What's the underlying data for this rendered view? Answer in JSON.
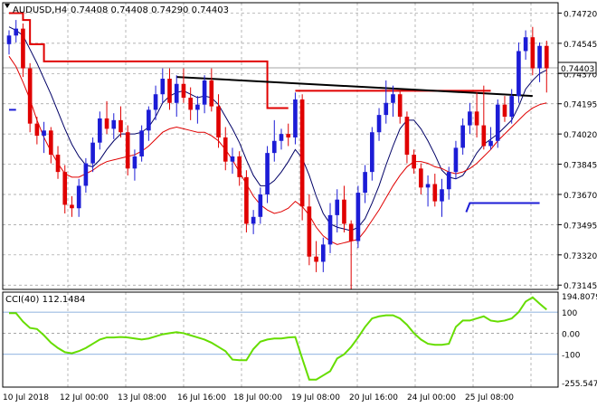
{
  "chart_data": [
    {
      "type": "candlestick",
      "symbol": "AUDUSD,H4",
      "ohlc_text": "0.74408 0.74408 0.74290 0.74403",
      "current_price": 0.74403,
      "current_price_label": "0.74403",
      "ylim": [
        0.7312,
        0.7478
      ],
      "y_ticks": [
        0.7472,
        0.74545,
        0.7437,
        0.74195,
        0.7402,
        0.73845,
        0.7367,
        0.73495,
        0.7332,
        0.73145
      ],
      "y_tick_labels": [
        "0.74720",
        "0.74545",
        "0.74370",
        "0.74195",
        "0.74020",
        "0.73845",
        "0.73670",
        "0.73495",
        "0.73320",
        "0.73145"
      ],
      "x_tick_labels": [
        "10 Jul 2018",
        "12 Jul 00:00",
        "13 Jul 08:00",
        "16 Jul 16:00",
        "18 Jul 00:00",
        "19 Jul 08:00",
        "20 Jul 16:00",
        "24 Jul 00:00",
        "25 Jul 08:00"
      ],
      "colors": {
        "up": "#1c1cd6",
        "down": "#e00000",
        "ma_fast": "#000066",
        "ma_slow": "#e00000",
        "trendline": "#000000",
        "grid": "#999999"
      },
      "candles": [
        [
          0.7454,
          0.7462,
          0.7448,
          0.7459
        ],
        [
          0.7459,
          0.7468,
          0.7455,
          0.7463
        ],
        [
          0.7463,
          0.7466,
          0.7435,
          0.744
        ],
        [
          0.744,
          0.7443,
          0.7403,
          0.7408
        ],
        [
          0.7408,
          0.7412,
          0.7396,
          0.7401
        ],
        [
          0.7401,
          0.7409,
          0.7391,
          0.7404
        ],
        [
          0.7404,
          0.7406,
          0.7385,
          0.739
        ],
        [
          0.739,
          0.7395,
          0.7376,
          0.738
        ],
        [
          0.738,
          0.7384,
          0.7356,
          0.7361
        ],
        [
          0.7361,
          0.7366,
          0.7354,
          0.7359
        ],
        [
          0.7359,
          0.7376,
          0.7354,
          0.7372
        ],
        [
          0.7372,
          0.7388,
          0.7368,
          0.7385
        ],
        [
          0.7385,
          0.74,
          0.738,
          0.7397
        ],
        [
          0.7397,
          0.7415,
          0.7393,
          0.7411
        ],
        [
          0.7411,
          0.7421,
          0.7402,
          0.7405
        ],
        [
          0.7405,
          0.7414,
          0.7399,
          0.741
        ],
        [
          0.741,
          0.7418,
          0.74,
          0.7403
        ],
        [
          0.7403,
          0.7407,
          0.7378,
          0.7382
        ],
        [
          0.7382,
          0.7393,
          0.7375,
          0.7389
        ],
        [
          0.7389,
          0.7407,
          0.7386,
          0.7404
        ],
        [
          0.7404,
          0.7418,
          0.7398,
          0.7416
        ],
        [
          0.7416,
          0.743,
          0.741,
          0.7425
        ],
        [
          0.7425,
          0.744,
          0.742,
          0.7434
        ],
        [
          0.7434,
          0.744,
          0.7416,
          0.742
        ],
        [
          0.742,
          0.7436,
          0.7412,
          0.7431
        ],
        [
          0.7431,
          0.744,
          0.742,
          0.7423
        ],
        [
          0.7423,
          0.7429,
          0.741,
          0.7416
        ],
        [
          0.7416,
          0.7424,
          0.7408,
          0.7419
        ],
        [
          0.7419,
          0.7436,
          0.7414,
          0.7433
        ],
        [
          0.7433,
          0.744,
          0.7415,
          0.7418
        ],
        [
          0.7418,
          0.7425,
          0.7394,
          0.74
        ],
        [
          0.74,
          0.7406,
          0.7381,
          0.7386
        ],
        [
          0.7386,
          0.7394,
          0.7379,
          0.7389
        ],
        [
          0.7389,
          0.7392,
          0.7372,
          0.7377
        ],
        [
          0.7377,
          0.7381,
          0.7345,
          0.735
        ],
        [
          0.735,
          0.7358,
          0.7344,
          0.7354
        ],
        [
          0.7354,
          0.7371,
          0.735,
          0.7367
        ],
        [
          0.7367,
          0.7395,
          0.7362,
          0.7391
        ],
        [
          0.7391,
          0.741,
          0.7386,
          0.7398
        ],
        [
          0.7398,
          0.7405,
          0.7393,
          0.7402
        ],
        [
          0.7402,
          0.7408,
          0.7395,
          0.74
        ],
        [
          0.74,
          0.7426,
          0.7396,
          0.7422
        ],
        [
          0.7422,
          0.7425,
          0.7352,
          0.736
        ],
        [
          0.736,
          0.7367,
          0.7326,
          0.7331
        ],
        [
          0.7331,
          0.734,
          0.7322,
          0.7328
        ],
        [
          0.7328,
          0.7342,
          0.7322,
          0.7338
        ],
        [
          0.7338,
          0.7362,
          0.7333,
          0.7355
        ],
        [
          0.7355,
          0.737,
          0.7345,
          0.7364
        ],
        [
          0.7364,
          0.7372,
          0.7345,
          0.735
        ],
        [
          0.735,
          0.7352,
          0.7312,
          0.734
        ],
        [
          0.734,
          0.7372,
          0.7336,
          0.7368
        ],
        [
          0.7368,
          0.7384,
          0.7362,
          0.738
        ],
        [
          0.738,
          0.7406,
          0.7375,
          0.7403
        ],
        [
          0.7403,
          0.7417,
          0.7398,
          0.7413
        ],
        [
          0.7413,
          0.7433,
          0.7408,
          0.742
        ],
        [
          0.742,
          0.743,
          0.7412,
          0.7425
        ],
        [
          0.7425,
          0.7427,
          0.7408,
          0.7412
        ],
        [
          0.7412,
          0.7415,
          0.7385,
          0.739
        ],
        [
          0.739,
          0.7393,
          0.7379,
          0.7382
        ],
        [
          0.7382,
          0.7385,
          0.7367,
          0.7371
        ],
        [
          0.7371,
          0.7378,
          0.736,
          0.7373
        ],
        [
          0.7373,
          0.7379,
          0.736,
          0.7363
        ],
        [
          0.7363,
          0.7376,
          0.7354,
          0.737
        ],
        [
          0.737,
          0.7383,
          0.7364,
          0.738
        ],
        [
          0.738,
          0.7398,
          0.7376,
          0.7394
        ],
        [
          0.7394,
          0.7411,
          0.739,
          0.7407
        ],
        [
          0.7407,
          0.742,
          0.7402,
          0.7415
        ],
        [
          0.7415,
          0.7426,
          0.74,
          0.7407
        ],
        [
          0.7407,
          0.743,
          0.7393,
          0.7395
        ],
        [
          0.7395,
          0.7406,
          0.7393,
          0.7398
        ],
        [
          0.7398,
          0.7422,
          0.7394,
          0.7419
        ],
        [
          0.7419,
          0.7424,
          0.7409,
          0.7412
        ],
        [
          0.7412,
          0.7428,
          0.7408,
          0.7424
        ],
        [
          0.7424,
          0.7455,
          0.742,
          0.745
        ],
        [
          0.745,
          0.7462,
          0.7445,
          0.7458
        ],
        [
          0.7458,
          0.7464,
          0.7436,
          0.744
        ],
        [
          0.744,
          0.7455,
          0.7432,
          0.7453
        ],
        [
          0.7453,
          0.7456,
          0.7426,
          0.744
        ]
      ],
      "ma_fast": [
        0.7464,
        0.7462,
        0.7459,
        0.7451,
        0.7443,
        0.7434,
        0.7425,
        0.7415,
        0.7405,
        0.7396,
        0.7389,
        0.7384,
        0.7383,
        0.7387,
        0.7393,
        0.7398,
        0.7402,
        0.7402,
        0.7402,
        0.7403,
        0.7406,
        0.7412,
        0.742,
        0.7424,
        0.7426,
        0.7427,
        0.7425,
        0.7423,
        0.7424,
        0.7423,
        0.7419,
        0.7412,
        0.7405,
        0.7397,
        0.7387,
        0.7378,
        0.7372,
        0.7372,
        0.7375,
        0.738,
        0.7386,
        0.7393,
        0.7388,
        0.7378,
        0.7366,
        0.7356,
        0.735,
        0.7348,
        0.7347,
        0.7346,
        0.7348,
        0.7353,
        0.7362,
        0.7372,
        0.7384,
        0.7395,
        0.7405,
        0.741,
        0.741,
        0.7405,
        0.7398,
        0.739,
        0.7381,
        0.7377,
        0.7376,
        0.7378,
        0.7384,
        0.7391,
        0.7396,
        0.7399,
        0.7402,
        0.7406,
        0.741,
        0.7418,
        0.7428,
        0.7433,
        0.7437,
        0.7439
      ],
      "ma_slow": [
        0.7447,
        0.7441,
        0.7432,
        0.7422,
        0.741,
        0.74,
        0.7392,
        0.7385,
        0.7379,
        0.7377,
        0.7377,
        0.7379,
        0.7381,
        0.7384,
        0.7386,
        0.7387,
        0.7388,
        0.7389,
        0.739,
        0.7392,
        0.7395,
        0.7399,
        0.7403,
        0.7405,
        0.7406,
        0.7405,
        0.7404,
        0.7403,
        0.7403,
        0.7401,
        0.7398,
        0.7393,
        0.7387,
        0.738,
        0.7373,
        0.7366,
        0.7361,
        0.7358,
        0.7356,
        0.7357,
        0.7359,
        0.7363,
        0.736,
        0.7355,
        0.7348,
        0.7343,
        0.734,
        0.7338,
        0.7339,
        0.734,
        0.7341,
        0.7346,
        0.7352,
        0.7358,
        0.7365,
        0.7372,
        0.7378,
        0.7383,
        0.7386,
        0.7386,
        0.7385,
        0.7383,
        0.7382,
        0.738,
        0.7379,
        0.738,
        0.7382,
        0.7385,
        0.7389,
        0.7393,
        0.7398,
        0.7402,
        0.7406,
        0.741,
        0.7414,
        0.7417,
        0.7419,
        0.742
      ],
      "red_step_upper": [
        [
          0,
          0.7472
        ],
        [
          1,
          0.7472
        ],
        [
          2,
          0.7468
        ],
        [
          3,
          0.7454
        ],
        [
          5,
          0.7444
        ],
        [
          6,
          0.7444
        ],
        [
          36,
          0.7444
        ],
        [
          37,
          0.7417
        ],
        [
          40,
          0.7417
        ]
      ],
      "blue_step_lower": [
        [
          0,
          0.7416
        ],
        [
          1,
          0.7416
        ]
      ],
      "red_level": [
        [
          41,
          0.7427
        ],
        [
          69,
          0.7427
        ]
      ],
      "blue_level": [
        [
          66,
          0.7362
        ],
        [
          76,
          0.7362
        ]
      ],
      "trendline": [
        [
          24,
          0.7435
        ],
        [
          75,
          0.7424
        ]
      ],
      "cci": {
        "label": "CCI(40) 112.1484",
        "ylim": [
          -255.5472,
          194.8079
        ],
        "tick_labels": [
          "194.8079",
          "100",
          "0.00",
          "-100",
          "-255.5472"
        ],
        "levels": [
          194.8079,
          100,
          0,
          -100,
          -255.5472
        ],
        "values": [
          95,
          95,
          55,
          25,
          20,
          -10,
          -45,
          -70,
          -90,
          -95,
          -85,
          -70,
          -50,
          -30,
          -20,
          -20,
          -18,
          -20,
          -25,
          -30,
          -25,
          -15,
          -5,
          0,
          5,
          0,
          -10,
          -20,
          -30,
          -45,
          -65,
          -85,
          -125,
          -128,
          -128,
          -75,
          -40,
          -30,
          -25,
          -25,
          -20,
          -18,
          -120,
          -220,
          -220,
          -200,
          -180,
          -120,
          -100,
          -65,
          -20,
          30,
          70,
          80,
          85,
          85,
          70,
          40,
          0,
          -30,
          -50,
          -55,
          -55,
          -50,
          30,
          60,
          60,
          70,
          80,
          60,
          55,
          60,
          70,
          100,
          150,
          170,
          140,
          112
        ]
      }
    }
  ]
}
